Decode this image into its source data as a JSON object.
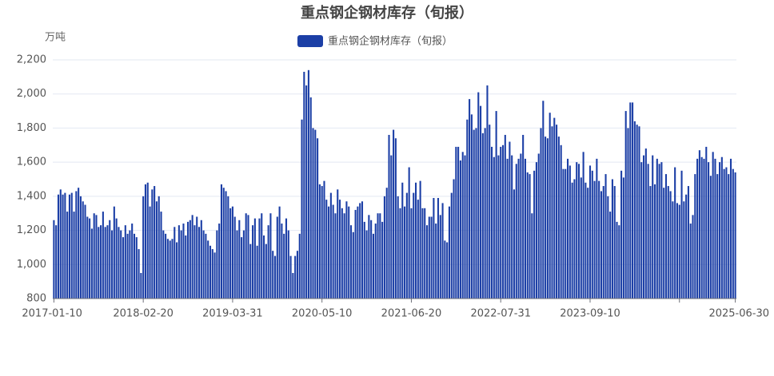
{
  "chart_data": {
    "type": "bar",
    "title": "重点钢企钢材库存（旬报）",
    "y_unit": "万吨",
    "color": "#1c3fa6",
    "legend": "top",
    "grid": true,
    "ylim": [
      800,
      2200
    ],
    "yticks": [
      800,
      {
        "value": 1000,
        "label": "1,000"
      },
      {
        "value": 1200,
        "label": "1,200"
      },
      {
        "value": 1400,
        "label": "1,400"
      },
      {
        "value": 1600,
        "label": "1,600"
      },
      {
        "value": 1800,
        "label": "1,800"
      },
      {
        "value": 2000,
        "label": "2,000"
      },
      {
        "value": 2200,
        "label": "2,200"
      }
    ],
    "categories": [
      "2017-01-10",
      null,
      null,
      null,
      null,
      null,
      null,
      null,
      null,
      null,
      null,
      null,
      null,
      null,
      null,
      null,
      null,
      null,
      null,
      null,
      null,
      null,
      null,
      null,
      null,
      null,
      null,
      null,
      null,
      null,
      null,
      null,
      null,
      null,
      null,
      null,
      null,
      null,
      null,
      null,
      "2018-02-20",
      null,
      null,
      null,
      null,
      null,
      null,
      null,
      null,
      null,
      null,
      null,
      null,
      null,
      null,
      null,
      null,
      null,
      null,
      null,
      null,
      null,
      null,
      null,
      null,
      null,
      null,
      null,
      null,
      null,
      null,
      null,
      null,
      null,
      null,
      null,
      null,
      null,
      null,
      null,
      "2019-03-31",
      null,
      null,
      null,
      null,
      null,
      null,
      null,
      null,
      null,
      null,
      null,
      null,
      null,
      null,
      null,
      null,
      null,
      null,
      null,
      null,
      null,
      null,
      null,
      null,
      null,
      null,
      null,
      null,
      null,
      null,
      null,
      null,
      null,
      null,
      null,
      null,
      null,
      null,
      null,
      "2020-05-10",
      null,
      null,
      null,
      null,
      null,
      null,
      null,
      null,
      null,
      null,
      null,
      null,
      null,
      null,
      null,
      null,
      null,
      null,
      null,
      null,
      null,
      null,
      null,
      null,
      null,
      null,
      null,
      null,
      null,
      null,
      null,
      null,
      null,
      null,
      null,
      null,
      null,
      null,
      null,
      "2021-06-20",
      null,
      null,
      null,
      null,
      null,
      null,
      null,
      null,
      null,
      null,
      null,
      null,
      null,
      null,
      null,
      null,
      null,
      null,
      null,
      null,
      null,
      null,
      null,
      null,
      null,
      null,
      null,
      null,
      null,
      null,
      null,
      null,
      null,
      null,
      null,
      null,
      null,
      null,
      null,
      "2022-07-31",
      null,
      null,
      null,
      null,
      null,
      null,
      null,
      null,
      null,
      null,
      null,
      null,
      null,
      null,
      null,
      null,
      null,
      null,
      null,
      null,
      null,
      null,
      null,
      null,
      null,
      null,
      null,
      null,
      null,
      null,
      null,
      null,
      null,
      null,
      null,
      null,
      null,
      null,
      null,
      "2023-09-10",
      null,
      null,
      null,
      null,
      null,
      null,
      null,
      null,
      null,
      null,
      null,
      null,
      null,
      null,
      null,
      null,
      null,
      null,
      null,
      null,
      null,
      null,
      null,
      null,
      null,
      null,
      null,
      null,
      null,
      null,
      null,
      null,
      null,
      null,
      null,
      null,
      null,
      null,
      null,
      null,
      null,
      null,
      null,
      null,
      null,
      null,
      null,
      null,
      null,
      null,
      null,
      null,
      null,
      null,
      null,
      null,
      null,
      null,
      null,
      null,
      null,
      null,
      null,
      null,
      "2025-06-30"
    ],
    "series": [
      {
        "name": "重点钢企钢材库存（旬报）",
        "color": "#1c3fa6",
        "values": [
          1260,
          1230,
          1410,
          1440,
          1410,
          1420,
          1310,
          1410,
          1420,
          1310,
          1430,
          1450,
          1400,
          1370,
          1350,
          1280,
          1270,
          1210,
          1300,
          1290,
          1220,
          1230,
          1310,
          1220,
          1230,
          1260,
          1200,
          1340,
          1270,
          1220,
          1200,
          1160,
          1230,
          1180,
          1200,
          1240,
          1180,
          1160,
          1090,
          950,
          1400,
          1470,
          1480,
          1340,
          1440,
          1460,
          1370,
          1400,
          1310,
          1200,
          1180,
          1150,
          1140,
          1150,
          1220,
          1130,
          1230,
          1200,
          1240,
          1170,
          1250,
          1260,
          1290,
          1230,
          1280,
          1220,
          1260,
          1200,
          1180,
          1140,
          1110,
          1090,
          1070,
          1200,
          1240,
          1470,
          1450,
          1430,
          1400,
          1330,
          1340,
          1280,
          1200,
          1260,
          1160,
          1200,
          1300,
          1290,
          1120,
          1230,
          1270,
          1110,
          1270,
          1300,
          1170,
          1120,
          1230,
          1300,
          1080,
          1050,
          1280,
          1340,
          1240,
          1180,
          1270,
          1200,
          1050,
          950,
          1050,
          1080,
          1180,
          1850,
          2130,
          2050,
          2140,
          1980,
          1800,
          1790,
          1740,
          1470,
          1460,
          1490,
          1380,
          1340,
          1420,
          1350,
          1300,
          1440,
          1380,
          1330,
          1300,
          1370,
          1340,
          1230,
          1190,
          1320,
          1340,
          1360,
          1370,
          1250,
          1200,
          1290,
          1260,
          1180,
          1240,
          1300,
          1300,
          1250,
          1400,
          1450,
          1760,
          1640,
          1790,
          1740,
          1400,
          1330,
          1480,
          1340,
          1420,
          1570,
          1330,
          1420,
          1480,
          1380,
          1490,
          1330,
          1330,
          1230,
          1280,
          1280,
          1390,
          1240,
          1390,
          1290,
          1360,
          1140,
          1130,
          1340,
          1420,
          1500,
          1690,
          1690,
          1610,
          1660,
          1640,
          1850,
          1970,
          1880,
          1790,
          1800,
          2010,
          1930,
          1770,
          1800,
          2050,
          1820,
          1690,
          1630,
          1900,
          1640,
          1690,
          1700,
          1760,
          1620,
          1720,
          1640,
          1440,
          1590,
          1620,
          1650,
          1760,
          1620,
          1540,
          1530,
          1300,
          1550,
          1600,
          1650,
          1800,
          1960,
          1750,
          1740,
          1890,
          1810,
          1860,
          1820,
          1750,
          1700,
          1560,
          1560,
          1620,
          1580,
          1480,
          1500,
          1600,
          1590,
          1510,
          1660,
          1480,
          1450,
          1580,
          1550,
          1490,
          1620,
          1490,
          1430,
          1460,
          1530,
          1400,
          1310,
          1500,
          1460,
          1250,
          1230,
          1550,
          1510,
          1900,
          1800,
          1950,
          1950,
          1840,
          1820,
          1810,
          1600,
          1640,
          1680,
          1590,
          1460,
          1640,
          1470,
          1620,
          1590,
          1600,
          1450,
          1530,
          1460,
          1430,
          1370,
          1570,
          1360,
          1350,
          1550,
          1370,
          1410,
          1460,
          1240,
          1290,
          1530,
          1620,
          1670,
          1630,
          1620,
          1690,
          1600,
          1520,
          1660,
          1620,
          1530,
          1600,
          1630,
          1560,
          1570,
          1530,
          1620,
          1560,
          1540
        ]
      }
    ]
  }
}
